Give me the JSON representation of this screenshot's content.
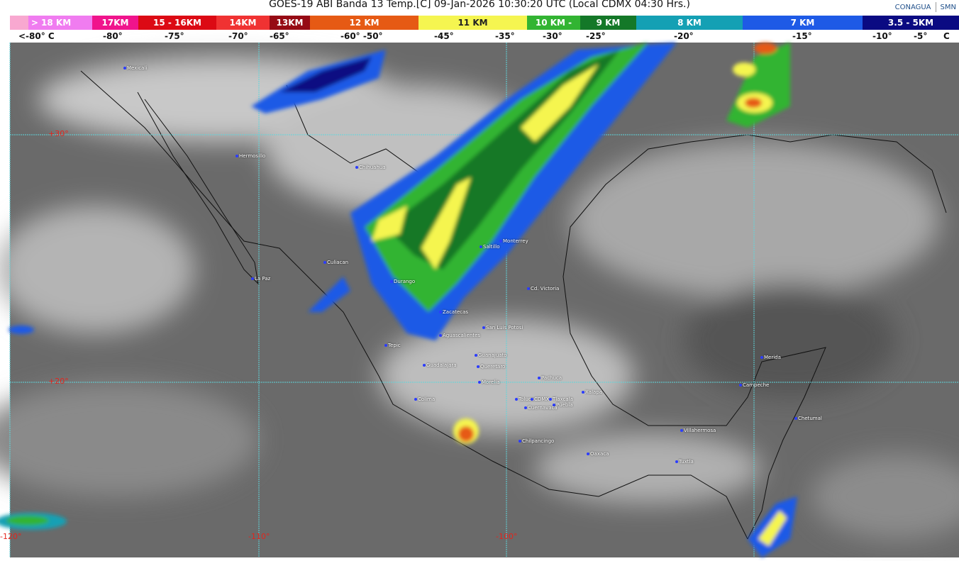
{
  "title": "GOES-19 ABI Banda 13 Temp.[C] 09-Jan-2026 10:30:20 UTC (Local CDMX  04:30 Hrs.)",
  "logos": [
    "CONAGUA",
    "SMN"
  ],
  "legend": {
    "segments": [
      {
        "label": "> 18 KM",
        "color": "#f07cf0"
      },
      {
        "label": "17KM",
        "color": "#f0148c"
      },
      {
        "label": "15 - 16KM",
        "color": "#dc0a14"
      },
      {
        "label": "14KM",
        "color": "#f03232"
      },
      {
        "label": "13KM",
        "color": "#960a14"
      },
      {
        "label": "12 KM",
        "color": "#e65a14"
      },
      {
        "label": "11 KM",
        "color": "#f5f550"
      },
      {
        "label": "10 KM -",
        "color": "#32b432"
      },
      {
        "label": "9 KM",
        "color": "#147828"
      },
      {
        "label": "8 KM",
        "color": "#14a0b4"
      },
      {
        "label": "7 KM",
        "color": "#1e5ae6"
      },
      {
        "label": "3.5 - 5KM",
        "color": "#0a0a82"
      }
    ],
    "temps": [
      "<-80° C",
      "-80°",
      "-75°",
      "-70°",
      "-65°",
      "-60°  -50°",
      "-45°",
      "-35°",
      "-30°",
      "-25°",
      "-20°",
      "-15°",
      "-10°",
      "-5°",
      "C"
    ]
  },
  "grid": {
    "lat": [
      "+30°",
      "+20°"
    ],
    "lon": [
      "-120°",
      "-110°",
      "-100°"
    ]
  },
  "cities": [
    "Mexicali",
    "Hermosillo",
    "Chihuahua",
    "Culiacan",
    "La Paz",
    "Durango",
    "Saltillo",
    "Monterrey",
    "Cd. Victoria",
    "Zacatecas",
    "San Luis Potosi",
    "Aguascalientes",
    "Tepic",
    "Guanajuato",
    "Guadalajara",
    "Queretaro",
    "Pachuca",
    "Morelia",
    "Colima",
    "Toluca",
    "CDMX",
    "Tlaxcala",
    "Puebla",
    "Cuernavaca",
    "Xalapa",
    "Chilpancingo",
    "Oaxaca",
    "Villahermosa",
    "Tuxtla",
    "Merida",
    "Campeche",
    "Chetumal"
  ]
}
